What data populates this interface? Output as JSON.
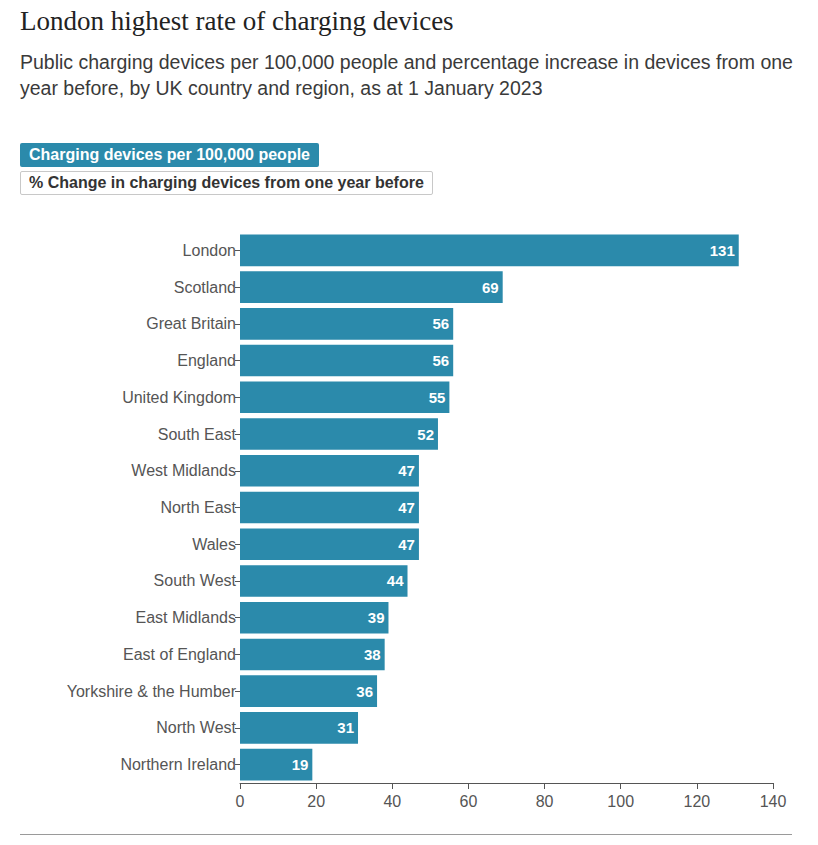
{
  "chart_data": {
    "type": "bar",
    "orientation": "horizontal",
    "title": "London highest rate of charging devices",
    "subtitle": "Public charging devices per 100,000 people and percentage increase in devices from one year before, by UK country and region, as at 1 January 2023",
    "annotations": [
      "Charging devices per 100,000 people",
      "% Change in charging devices from one year before"
    ],
    "categories": [
      "London",
      "Scotland",
      "Great Britain",
      "England",
      "United Kingdom",
      "South East",
      "West Midlands",
      "North East",
      "Wales",
      "South West",
      "East Midlands",
      "East of England",
      "Yorkshire & the Humber",
      "North West",
      "Northern Ireland"
    ],
    "values": [
      131,
      69,
      56,
      56,
      55,
      52,
      47,
      47,
      47,
      44,
      39,
      38,
      36,
      31,
      19
    ],
    "color": "#2b8aab",
    "xlim": [
      0,
      140
    ],
    "xticks": [
      0,
      20,
      40,
      60,
      80,
      100,
      120,
      140
    ],
    "grid": false,
    "data_labels": true
  }
}
